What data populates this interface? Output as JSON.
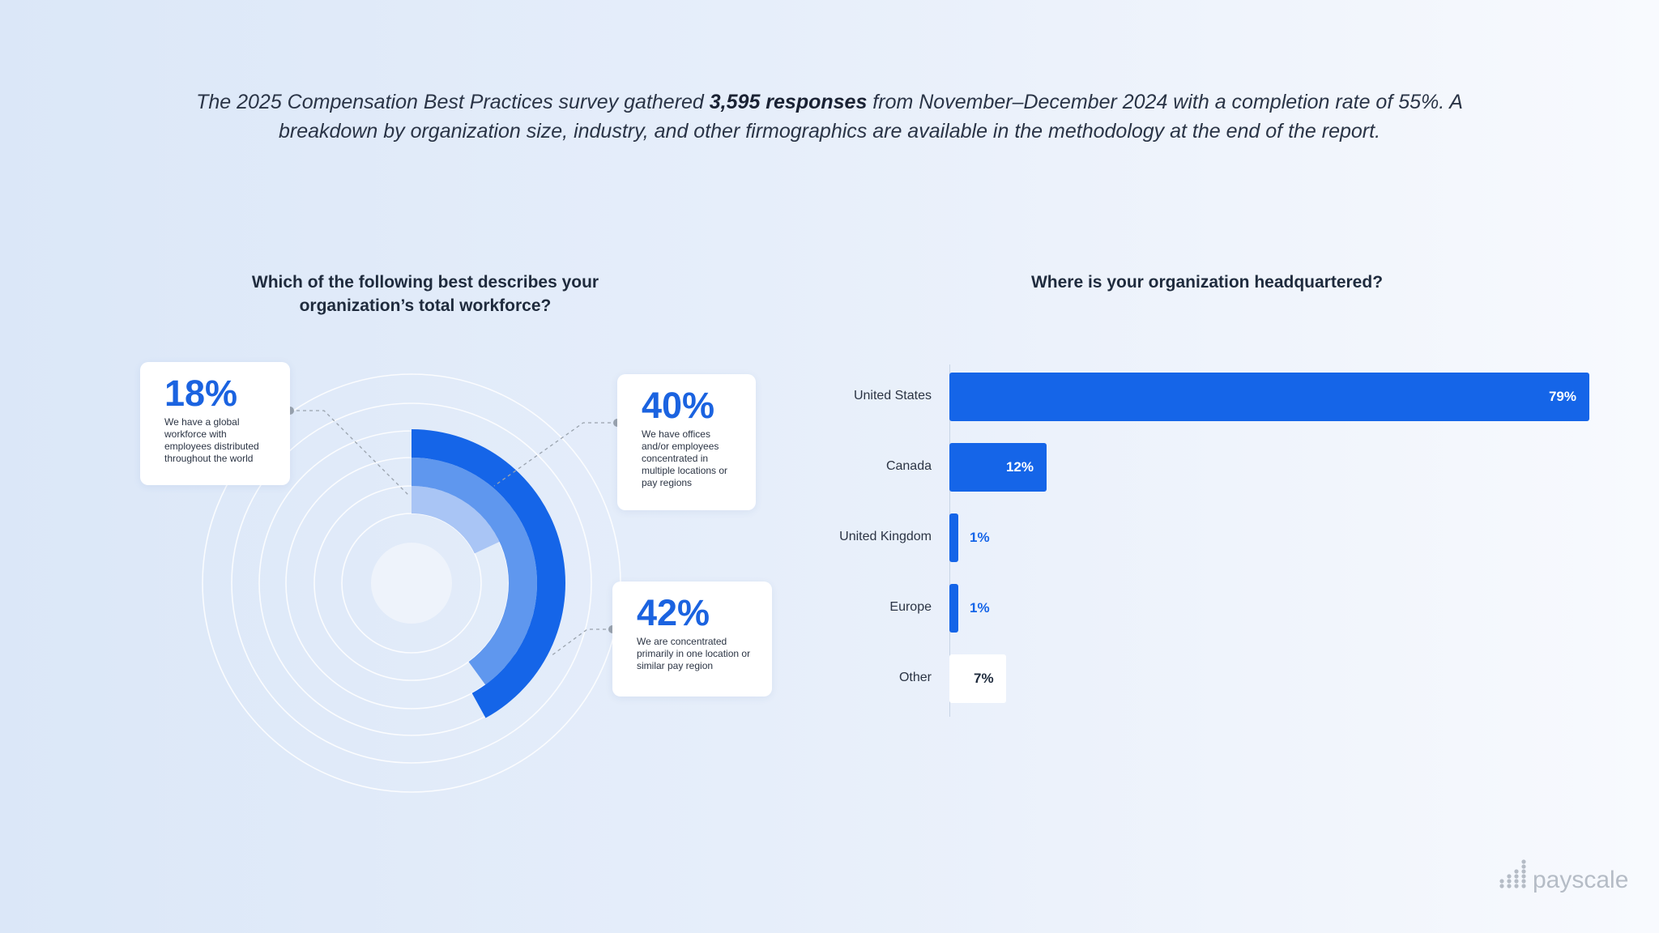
{
  "intro": {
    "part1": "The 2025 Compensation Best Practices survey gathered ",
    "bold": "3,595 responses",
    "part2": " from November–December 2024 with a completion rate of 55%. A breakdown by organization size, industry, and other firmographics are available in the methodology at the end of the report."
  },
  "brand": {
    "logo_text": "payscale"
  },
  "colors": {
    "primary": "#1565e8",
    "mid": "#5f97ee",
    "light": "#a9c5f5",
    "text": "#1f2b3d"
  },
  "chart_data": [
    {
      "type": "radial-bar",
      "title": "Which of the following best describes your organization’s total workforce?",
      "categories": [
        "We have a global workforce with employees distributed throughout the world",
        "We have offices and/or employees concentrated in multiple locations or pay regions",
        "We are concentrated primarily in one location or similar pay region"
      ],
      "series": [
        {
          "values": [
            18,
            40,
            42
          ],
          "labels": [
            "18%",
            "40%",
            "42%"
          ]
        }
      ],
      "max": 100
    },
    {
      "type": "bar",
      "orientation": "horizontal",
      "title": "Where is your organization headquartered?",
      "categories": [
        "United States",
        "Canada",
        "United Kingdom",
        "Europe",
        "Other"
      ],
      "values": [
        79,
        12,
        1,
        1,
        7
      ],
      "labels": [
        "79%",
        "12%",
        "1%",
        "1%",
        "7%"
      ],
      "xlim": [
        0,
        79
      ]
    }
  ]
}
